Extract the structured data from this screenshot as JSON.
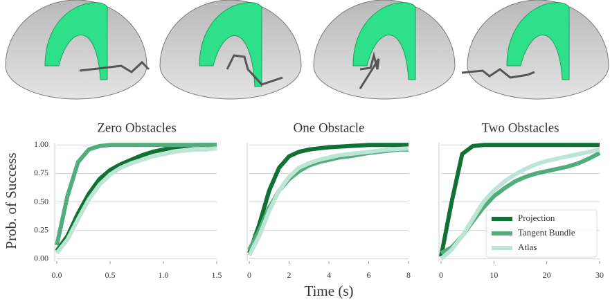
{
  "chart_data": [
    {
      "type": "line",
      "title": "Zero Obstacles",
      "ylabel": "Prob. of Success",
      "x": [
        0,
        0.1,
        0.2,
        0.3,
        0.4,
        0.5,
        0.6,
        0.7,
        0.8,
        0.9,
        1.0,
        1.1,
        1.2,
        1.3,
        1.4,
        1.5
      ],
      "series": [
        {
          "name": "Projection",
          "color": "#0f7134",
          "values": [
            0.07,
            0.2,
            0.4,
            0.57,
            0.7,
            0.78,
            0.83,
            0.87,
            0.91,
            0.94,
            0.96,
            0.98,
            0.99,
            1.0,
            1.0,
            1.0
          ]
        },
        {
          "name": "Tangent Bundle",
          "color": "#52ad7c",
          "values": [
            0.12,
            0.55,
            0.85,
            0.96,
            0.99,
            1.0,
            1.0,
            1.0,
            1.0,
            1.0,
            1.0,
            1.0,
            1.0,
            1.0,
            1.0,
            1.0
          ]
        },
        {
          "name": "Atlas",
          "color": "#bde5d6",
          "values": [
            0.05,
            0.17,
            0.35,
            0.52,
            0.65,
            0.74,
            0.8,
            0.84,
            0.87,
            0.9,
            0.92,
            0.94,
            0.95,
            0.96,
            0.96,
            0.97
          ]
        }
      ],
      "xlim": [
        0,
        1.5
      ],
      "xticks": [
        {
          "value": 0,
          "label": "0.0"
        },
        0.5,
        {
          "value": 1,
          "label": "1.0"
        },
        1.5
      ],
      "ylim": [
        -0.02,
        1.02
      ],
      "yticks": [
        {
          "value": 0,
          "label": "0.00"
        },
        {
          "value": 0.25,
          "label": "0.25"
        },
        {
          "value": 0.5,
          "label": "0.50"
        },
        {
          "value": 0.75,
          "label": "0.75"
        },
        {
          "value": 1,
          "label": "1.00"
        }
      ],
      "grid": true
    },
    {
      "type": "line",
      "title": "One Obstacle",
      "xlabel": "Time (s)",
      "x": [
        0,
        0.5,
        1,
        1.5,
        2,
        2.5,
        3,
        3.5,
        4,
        4.5,
        5,
        5.5,
        6,
        6.5,
        7,
        7.5,
        8
      ],
      "series": [
        {
          "name": "Projection",
          "color": "#0f7134",
          "values": [
            0.05,
            0.3,
            0.6,
            0.8,
            0.9,
            0.94,
            0.96,
            0.97,
            0.98,
            0.985,
            0.99,
            0.995,
            1.0,
            1.0,
            1.0,
            1.0,
            1.0
          ]
        },
        {
          "name": "Tangent Bundle",
          "color": "#52ad7c",
          "values": [
            0.08,
            0.25,
            0.45,
            0.6,
            0.7,
            0.77,
            0.82,
            0.85,
            0.87,
            0.89,
            0.9,
            0.915,
            0.93,
            0.94,
            0.95,
            0.96,
            0.96
          ]
        },
        {
          "name": "Atlas",
          "color": "#bde5d6",
          "values": [
            0.03,
            0.2,
            0.42,
            0.6,
            0.72,
            0.8,
            0.84,
            0.87,
            0.89,
            0.91,
            0.92,
            0.93,
            0.94,
            0.95,
            0.96,
            0.965,
            0.97
          ]
        }
      ],
      "xlim": [
        0,
        8
      ],
      "xticks": [
        0,
        2,
        4,
        6,
        8
      ],
      "ylim": [
        -0.02,
        1.02
      ],
      "yticks": [
        0,
        0.25,
        0.5,
        0.75,
        1
      ],
      "grid": true
    },
    {
      "type": "line",
      "title": "Two Obstacles",
      "legend": "lower right",
      "x": [
        0,
        2,
        4,
        6,
        8,
        10,
        12,
        14,
        16,
        18,
        20,
        22,
        24,
        26,
        28,
        30
      ],
      "series": [
        {
          "name": "Projection",
          "color": "#0f7134",
          "values": [
            0.02,
            0.5,
            0.92,
            0.99,
            1.0,
            1.0,
            1.0,
            1.0,
            1.0,
            1.0,
            1.0,
            1.0,
            1.0,
            1.0,
            1.0,
            1.0
          ]
        },
        {
          "name": "Tangent Bundle",
          "color": "#52ad7c",
          "values": [
            0.05,
            0.1,
            0.2,
            0.33,
            0.45,
            0.55,
            0.62,
            0.68,
            0.72,
            0.75,
            0.77,
            0.79,
            0.81,
            0.84,
            0.88,
            0.93
          ]
        },
        {
          "name": "Atlas",
          "color": "#bde5d6",
          "values": [
            0.0,
            0.08,
            0.2,
            0.35,
            0.5,
            0.6,
            0.68,
            0.74,
            0.79,
            0.83,
            0.86,
            0.88,
            0.9,
            0.92,
            0.94,
            0.96
          ]
        }
      ],
      "xlim": [
        0,
        30
      ],
      "xticks": [
        0,
        10,
        20,
        30
      ],
      "ylim": [
        -0.02,
        1.02
      ],
      "yticks": [
        0,
        0.25,
        0.5,
        0.75,
        1
      ],
      "grid": true
    }
  ]
}
